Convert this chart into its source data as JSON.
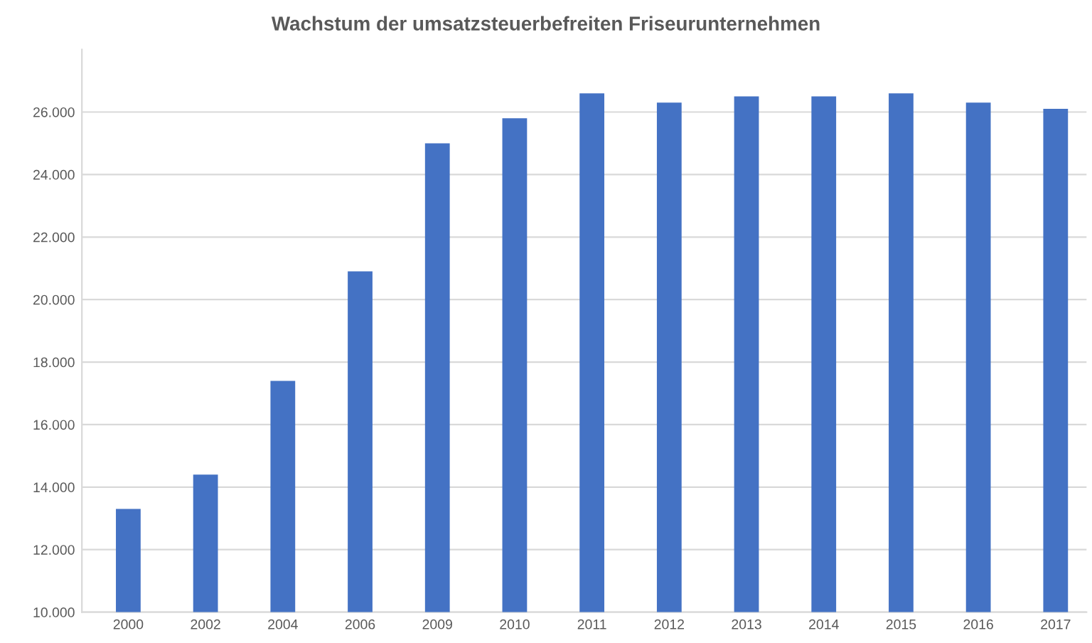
{
  "chart_data": {
    "type": "bar",
    "title": "Wachstum der umsatzsteuerbefreiten Friseurunternehmen",
    "categories": [
      "2000",
      "2002",
      "2004",
      "2006",
      "2009",
      "2010",
      "2011",
      "2012",
      "2013",
      "2014",
      "2015",
      "2016",
      "2017"
    ],
    "values": [
      13300,
      14400,
      17400,
      20900,
      25000,
      25800,
      26600,
      26300,
      26500,
      26500,
      26600,
      26300,
      26100
    ],
    "color": "#4472c4",
    "ylim": [
      10000,
      28000
    ],
    "yticks": [
      {
        "value": 10000,
        "label": "10.000"
      },
      {
        "value": 12000,
        "label": "12.000"
      },
      {
        "value": 14000,
        "label": "14.000"
      },
      {
        "value": 16000,
        "label": "16.000"
      },
      {
        "value": 18000,
        "label": "18.000"
      },
      {
        "value": 20000,
        "label": "20.000"
      },
      {
        "value": 22000,
        "label": "22.000"
      },
      {
        "value": 24000,
        "label": "24.000"
      },
      {
        "value": 26000,
        "label": "26.000"
      }
    ],
    "grid": "y"
  }
}
